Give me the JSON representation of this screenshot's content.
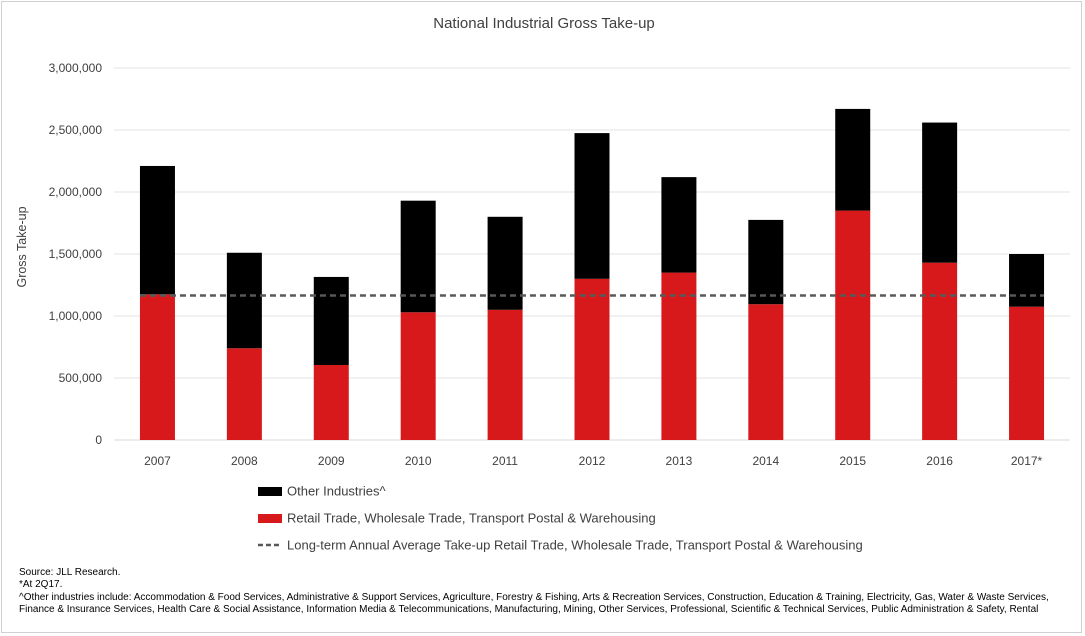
{
  "chart_data": {
    "type": "bar",
    "stacked": true,
    "title": "National  Industrial Gross Take-up",
    "ylabel": "Gross Take-up",
    "xlabel": "",
    "categories": [
      "2007",
      "2008",
      "2009",
      "2010",
      "2011",
      "2012",
      "2013",
      "2014",
      "2015",
      "2016",
      "2017*"
    ],
    "series": [
      {
        "name": "Retail Trade, Wholesale Trade, Transport Postal & Warehousing",
        "color": "#d7191c",
        "values": [
          1175000,
          740000,
          605000,
          1030000,
          1050000,
          1300000,
          1350000,
          1095000,
          1850000,
          1430000,
          1075000
        ]
      },
      {
        "name": "Other Industries^",
        "color": "#000000",
        "values": [
          1035000,
          770000,
          710000,
          900000,
          750000,
          1175000,
          770000,
          680000,
          820000,
          1130000,
          425000
        ]
      }
    ],
    "reference_line": {
      "name": "Long-term Annual Average Take-up Retail Trade, Wholesale Trade, Transport Postal & Warehousing",
      "value": 1165000,
      "color": "#595959",
      "style": "dashed"
    },
    "ylim": [
      0,
      3000000
    ],
    "yticks": [
      0,
      500000,
      1000000,
      1500000,
      2000000,
      2500000,
      3000000
    ],
    "ytick_labels": [
      "0",
      "500,000",
      "1,000,000",
      "1,500,000",
      "2,000,000",
      "2,500,000",
      "3,000,000"
    ],
    "grid": true,
    "legend_position": "bottom"
  },
  "notes": {
    "source": "Source: JLL Research.",
    "asterisk": "*At 2Q17.",
    "other_industries_line1": "^Other industries include: Accommodation & Food Services, Administrative & Support Services, Agriculture, Forestry & Fishing, Arts & Recreation Services, Construction, Education & Training, Electricity, Gas, Water & Waste Services,",
    "other_industries_line2": "Finance & Insurance Services, Health Care & Social Assistance, Information Media & Telecommunications, Manufacturing, Mining, Other Services, Professional, Scientific & Technical Services, Public Administration & Safety, Rental"
  }
}
